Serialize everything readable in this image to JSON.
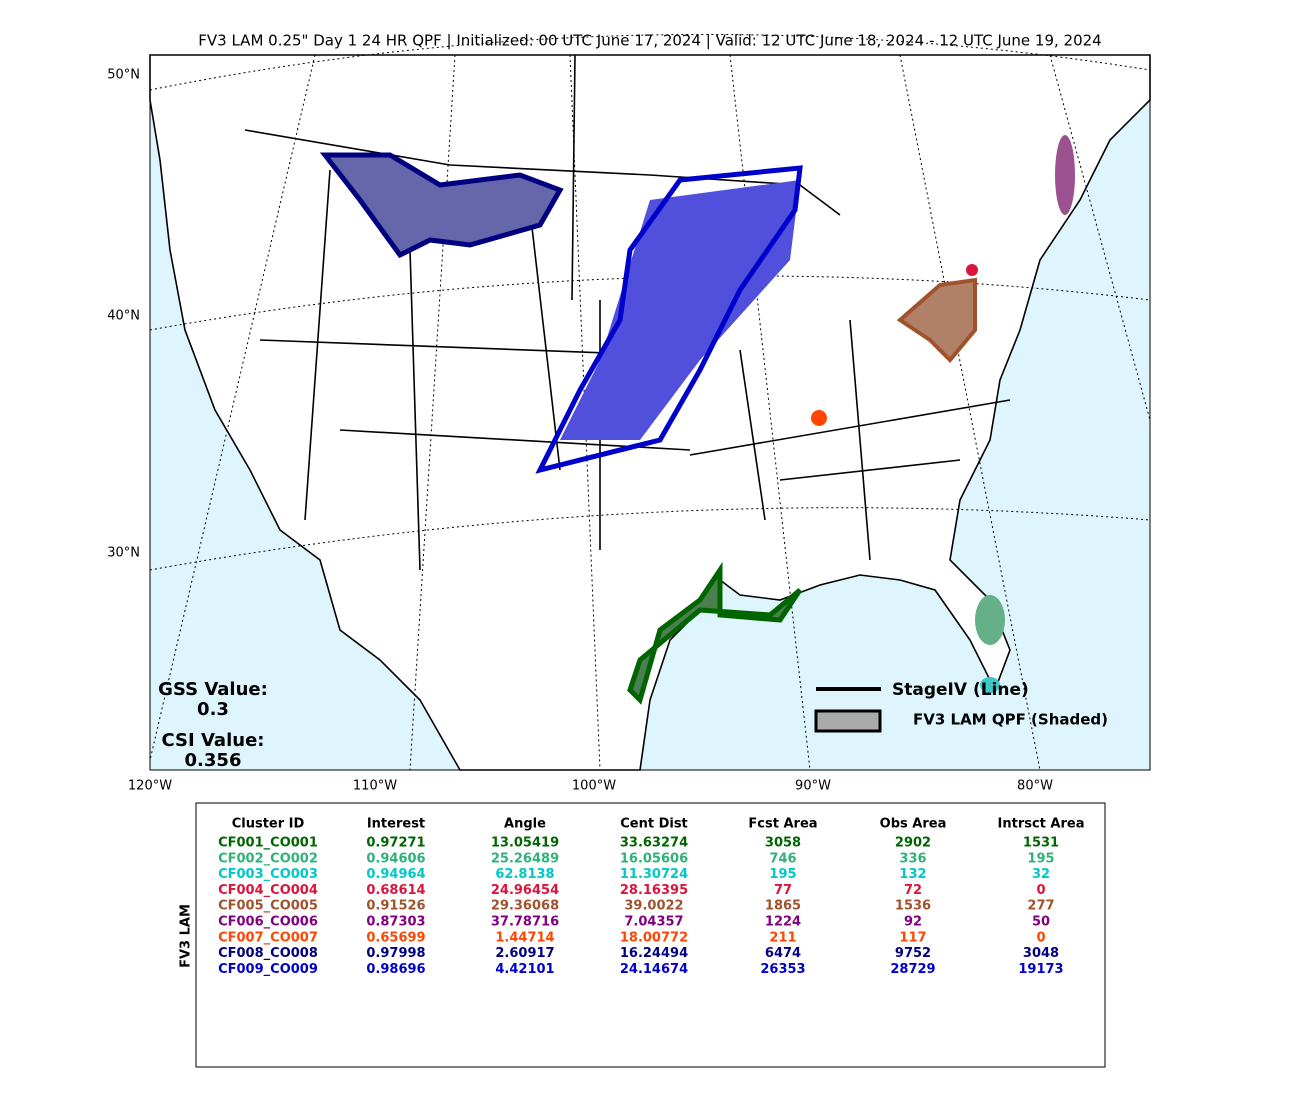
{
  "title": "FV3 LAM 0.25\" Day 1 24 HR QPF | Initialized: 00 UTC June 17, 2024 | Valid: 12 UTC June 18, 2024 - 12 UTC June 19, 2024",
  "map": {
    "lat_labels": [
      "50°N",
      "40°N",
      "30°N"
    ],
    "lon_labels": [
      "120°W",
      "110°W",
      "100°W",
      "90°W",
      "80°W"
    ]
  },
  "scores": {
    "gss_label": "GSS Value:",
    "gss": "0.3",
    "csi_label": "CSI Value:",
    "csi": "0.356"
  },
  "legend": {
    "line": "StageIV (Line)",
    "shaded": "FV3 LAM QPF (Shaded)"
  },
  "table": {
    "side_label": "FV3 LAM",
    "columns": [
      "Cluster ID",
      "Interest",
      "Angle",
      "Cent Dist",
      "Fcst Area",
      "Obs Area",
      "Intrsct Area"
    ],
    "row_colors": [
      "#006400",
      "#2eb27a",
      "#00c8c8",
      "#dc143c",
      "#a0522d",
      "#800080",
      "#ff4500",
      "#000080",
      "#0000cd"
    ],
    "rows": [
      [
        "CF001_CO001",
        "0.97271",
        "13.05419",
        "33.63274",
        "3058",
        "2902",
        "1531"
      ],
      [
        "CF002_CO002",
        "0.94606",
        "25.26489",
        "16.05606",
        "746",
        "336",
        "195"
      ],
      [
        "CF003_CO003",
        "0.94964",
        "62.8138",
        "11.30724",
        "195",
        "132",
        "32"
      ],
      [
        "CF004_CO004",
        "0.68614",
        "24.96454",
        "28.16395",
        "77",
        "72",
        "0"
      ],
      [
        "CF005_CO005",
        "0.91526",
        "29.36068",
        "39.0022",
        "1865",
        "1536",
        "277"
      ],
      [
        "CF006_CO006",
        "0.87303",
        "37.78716",
        "7.04357",
        "1224",
        "92",
        "50"
      ],
      [
        "CF007_CO007",
        "0.65699",
        "1.44714",
        "18.00772",
        "211",
        "117",
        "0"
      ],
      [
        "CF008_CO008",
        "0.97998",
        "2.60917",
        "16.24494",
        "6474",
        "9752",
        "3048"
      ],
      [
        "CF009_CO009",
        "0.98696",
        "4.42101",
        "24.14674",
        "26353",
        "28729",
        "19173"
      ]
    ]
  }
}
